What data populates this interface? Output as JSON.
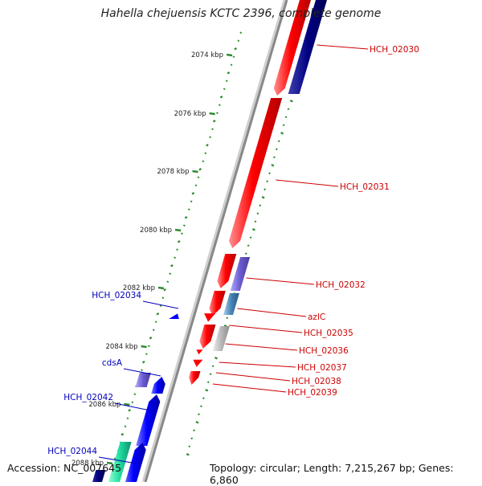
{
  "title": "Hahella chejuensis KCTC 2396, complete genome",
  "footer": {
    "accession": "Accession: NC_007645",
    "summary": "Topology: circular; Length: 7,215,267 bp; Genes: 6,860"
  },
  "ticks": [
    "2074 kbp",
    "2076 kbp",
    "2078 kbp",
    "2080 kbp",
    "2082 kbp",
    "2084 kbp",
    "2086 kbp",
    "2088 kbp"
  ],
  "genes_right": [
    {
      "label": "HCH_02030",
      "color": "#cc0000"
    },
    {
      "label": "HCH_02031",
      "color": "#cc0000"
    },
    {
      "label": "HCH_02032",
      "color": "#cc0000"
    },
    {
      "label": "azlC",
      "color": "#cc0000"
    },
    {
      "label": "HCH_02035",
      "color": "#cc0000"
    },
    {
      "label": "HCH_02036",
      "color": "#cc0000"
    },
    {
      "label": "HCH_02037",
      "color": "#cc0000"
    },
    {
      "label": "HCH_02038",
      "color": "#cc0000"
    },
    {
      "label": "HCH_02039",
      "color": "#cc0000"
    }
  ],
  "genes_left": [
    {
      "label": "HCH_02034",
      "color": "#0000bb"
    },
    {
      "label": "cdsA",
      "color": "#0000bb"
    },
    {
      "label": "HCH_02042",
      "color": "#0000bb"
    },
    {
      "label": "HCH_02044",
      "color": "#0000bb"
    }
  ],
  "colors": {
    "forward": "#ff0000",
    "reverse": "#0000ff",
    "navy": "#000080",
    "purple": "#6a5acd",
    "steel": "#4682b4",
    "gray": "#b0b0b0",
    "teal": "#20d0a0",
    "gc_dots": "#2e8b2e",
    "backbone": "#888888"
  }
}
